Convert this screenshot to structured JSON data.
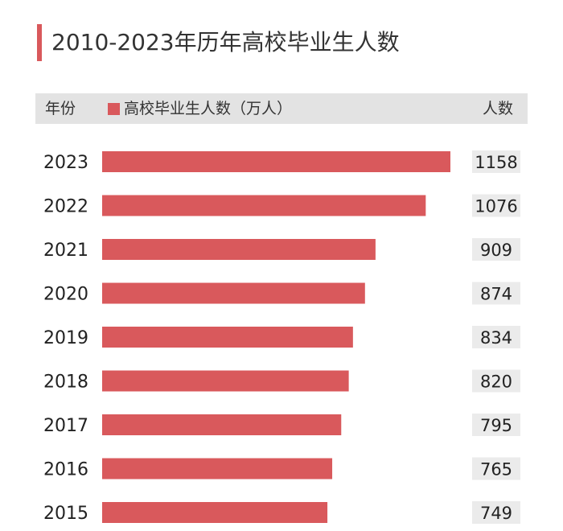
{
  "title": "2010-2023年历年高校毕业生人数",
  "header": {
    "year_label": "年份",
    "legend_label": "高校毕业生人数（万人）",
    "count_label": "人数"
  },
  "colors": {
    "bar": "#d9595c",
    "accent": "#d9595c",
    "header_bg": "#e3e3e3",
    "value_box": "#ebebeb"
  },
  "chart_data": {
    "type": "bar",
    "orientation": "horizontal",
    "categories": [
      "2023",
      "2022",
      "2021",
      "2020",
      "2019",
      "2018",
      "2017",
      "2016",
      "2015"
    ],
    "values": [
      1158,
      1076,
      909,
      874,
      834,
      820,
      795,
      765,
      749
    ],
    "title": "2010-2023年历年高校毕业生人数",
    "series": [
      {
        "name": "高校毕业生人数（万人）",
        "values": [
          1158,
          1076,
          909,
          874,
          834,
          820,
          795,
          765,
          749
        ]
      }
    ],
    "xlabel": "",
    "ylabel": "年份",
    "xlim": [
      0,
      1158
    ],
    "grid": false,
    "legend": "top"
  }
}
